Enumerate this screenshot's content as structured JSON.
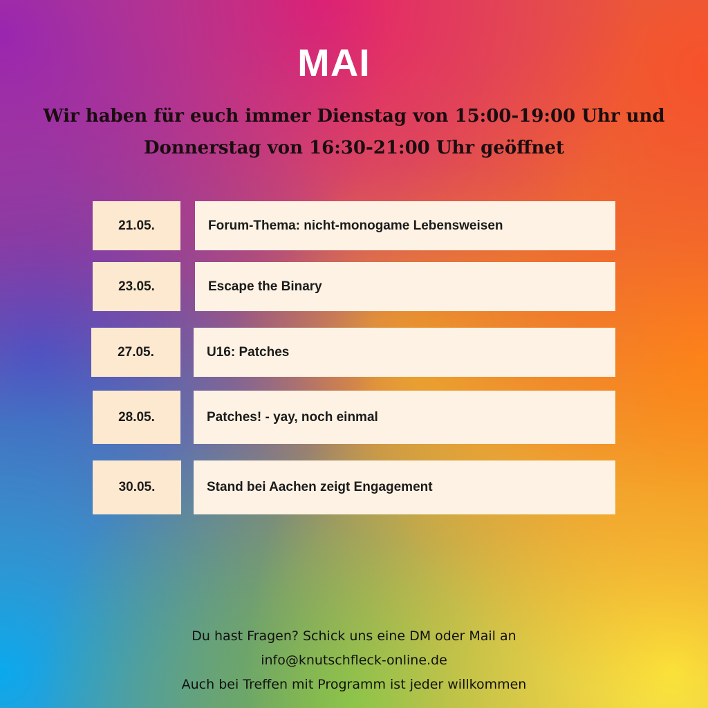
{
  "title": "MAI",
  "hours": {
    "line1": "Wir haben für euch immer Dienstag von 15:00-19:00 Uhr und",
    "line2": "Donnerstag von 16:30-21:00 Uhr geöffnet"
  },
  "events": [
    {
      "date": "21.05.",
      "title": "Forum-Thema: nicht-monogame Lebensweisen"
    },
    {
      "date": "23.05.",
      "title": "Escape the Binary"
    },
    {
      "date": "27.05.",
      "title": "U16: Patches"
    },
    {
      "date": "28.05.",
      "title": "Patches! - yay, noch einmal"
    },
    {
      "date": "30.05.",
      "title": "Stand bei Aachen zeigt Engagement"
    }
  ],
  "footer": {
    "line1": "Du hast Fragen? Schick uns eine DM oder Mail an",
    "email": "info@knutschfleck-online.de",
    "line3": "Auch bei Treffen mit Programm ist jeder willkommen"
  },
  "colors": {
    "date_box": "#fde9d0",
    "event_box": "#fdf2e3",
    "title": "#ffffff"
  }
}
